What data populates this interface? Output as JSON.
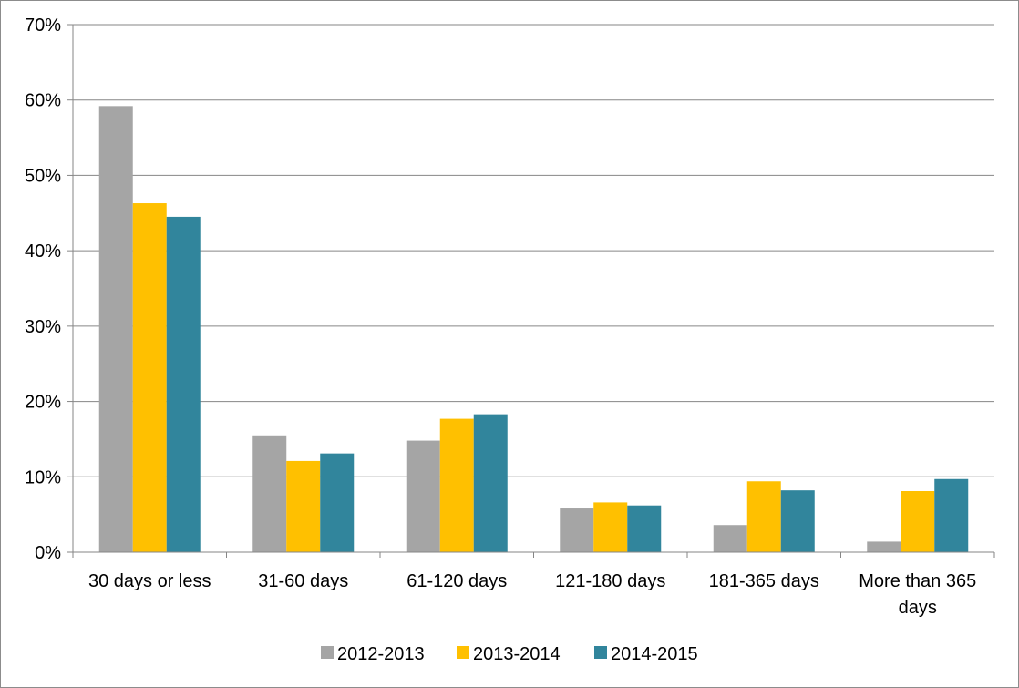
{
  "chart_data": {
    "type": "bar",
    "title": "",
    "xlabel": "",
    "ylabel": "",
    "categories": [
      [
        "30 days or less"
      ],
      [
        "31-60 days"
      ],
      [
        "61-120 days"
      ],
      [
        "121-180 days"
      ],
      [
        "181-365 days"
      ],
      [
        "More than 365",
        "days"
      ]
    ],
    "series": [
      {
        "name": "2012-2013",
        "color": "#a5a5a5",
        "values": [
          59.2,
          15.5,
          14.8,
          5.8,
          3.6,
          1.4
        ]
      },
      {
        "name": "2013-2014",
        "color": "#ffc000",
        "values": [
          46.3,
          12.1,
          17.7,
          6.6,
          9.4,
          8.1
        ]
      },
      {
        "name": "2014-2015",
        "color": "#31859c",
        "values": [
          44.5,
          13.1,
          18.3,
          6.2,
          8.2,
          9.7
        ]
      }
    ],
    "ylim": [
      0,
      70
    ],
    "yticks": [
      "0%",
      "10%",
      "20%",
      "30%",
      "40%",
      "50%",
      "60%",
      "70%"
    ],
    "grid": true,
    "legend": "bottom"
  }
}
